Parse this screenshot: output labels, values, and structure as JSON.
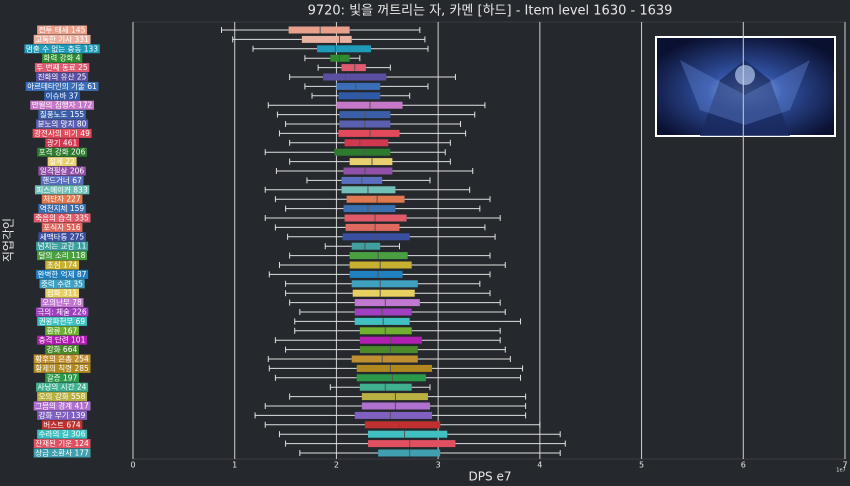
{
  "chart_data": {
    "type": "boxplot",
    "title": "9720: 빛을 꺼트리는 자, 카멘 [하드] - Item level 1630 - 1639",
    "x_label": "DPS e7",
    "y_label": "직업각인",
    "offset_label": "1e7",
    "xlim": [
      0,
      7
    ],
    "xticks": [
      0,
      1,
      2,
      3,
      4,
      5,
      6,
      7
    ],
    "grid": true,
    "boxes": [
      {
        "label": "전투 태세 145",
        "color": "#e8a08a",
        "low": 0.87,
        "q1": 1.53,
        "median": 1.84,
        "q3": 2.13,
        "high": 2.82
      },
      {
        "label": "고독한 기사 331",
        "color": "#eab0a0",
        "low": 0.98,
        "q1": 1.66,
        "median": 2.03,
        "q3": 2.15,
        "high": 2.87
      },
      {
        "label": "멈출 수 없는 충동 133",
        "color": "#1f9ab8",
        "low": 1.18,
        "q1": 1.81,
        "median": 1.99,
        "q3": 2.34,
        "high": 2.9
      },
      {
        "label": "화력 강화 4",
        "color": "#2e8b2e",
        "low": 1.69,
        "q1": 1.94,
        "median": 2.03,
        "q3": 2.13,
        "high": 2.23
      },
      {
        "label": "두 번째 동료 25",
        "color": "#e05a70",
        "low": 1.82,
        "q1": 2.05,
        "median": 2.18,
        "q3": 2.29,
        "high": 2.53
      },
      {
        "label": "진화의 유산 25",
        "color": "#5a4fa0",
        "low": 1.54,
        "q1": 1.87,
        "median": 2.09,
        "q3": 2.49,
        "high": 3.17
      },
      {
        "label": "아르데타인의 기술 61",
        "color": "#3a6fb8",
        "low": 1.69,
        "q1": 2.0,
        "median": 2.19,
        "q3": 2.43,
        "high": 2.9
      },
      {
        "label": "이슈바 37",
        "color": "#2f5aa8",
        "low": 1.76,
        "q1": 2.02,
        "median": 2.23,
        "q3": 2.43,
        "high": 2.72
      },
      {
        "label": "만월의 집행자 172",
        "color": "#c878c8",
        "low": 1.33,
        "q1": 2.0,
        "median": 2.33,
        "q3": 2.65,
        "high": 3.46
      },
      {
        "label": "질풍노도 155",
        "color": "#3a5fa8",
        "low": 1.42,
        "q1": 2.03,
        "median": 2.28,
        "q3": 2.53,
        "high": 3.36
      },
      {
        "label": "분노의 망치 80",
        "color": "#5a5fb0",
        "low": 1.5,
        "q1": 2.03,
        "median": 2.28,
        "q3": 2.53,
        "high": 3.22
      },
      {
        "label": "광전사의 비기 49",
        "color": "#e04a5a",
        "low": 1.44,
        "q1": 2.02,
        "median": 2.33,
        "q3": 2.62,
        "high": 3.27
      },
      {
        "label": "광기 461",
        "color": "#d03850",
        "low": 1.54,
        "q1": 2.08,
        "median": 2.23,
        "q3": 2.51,
        "high": 3.12
      },
      {
        "label": "포격 강화 206",
        "color": "#2e7a2e",
        "low": 1.3,
        "q1": 1.98,
        "median": 2.28,
        "q3": 2.53,
        "high": 3.07
      },
      {
        "label": "절제 22",
        "color": "#e8d070",
        "low": 1.54,
        "q1": 2.13,
        "median": 2.35,
        "q3": 2.55,
        "high": 3.12
      },
      {
        "label": "일격필살 206",
        "color": "#9050a8",
        "low": 1.41,
        "q1": 2.07,
        "median": 2.28,
        "q3": 2.55,
        "high": 3.34
      },
      {
        "label": "핸드거너 67",
        "color": "#5a6fc0",
        "low": 1.71,
        "q1": 2.05,
        "median": 2.25,
        "q3": 2.45,
        "high": 2.92
      },
      {
        "label": "피스메이커 833",
        "color": "#70c0b8",
        "low": 1.3,
        "q1": 2.05,
        "median": 2.31,
        "q3": 2.58,
        "high": 3.31
      },
      {
        "label": "처단자 227",
        "color": "#e07850",
        "low": 1.4,
        "q1": 2.1,
        "median": 2.4,
        "q3": 2.67,
        "high": 3.51
      },
      {
        "label": "역천지체 159",
        "color": "#3a6fb0",
        "low": 1.5,
        "q1": 2.07,
        "median": 2.31,
        "q3": 2.58,
        "high": 3.41
      },
      {
        "label": "죽음의 습격 335",
        "color": "#e05a6a",
        "low": 1.3,
        "q1": 2.08,
        "median": 2.38,
        "q3": 2.69,
        "high": 3.61
      },
      {
        "label": "포식자 516",
        "color": "#e06a60",
        "low": 1.4,
        "q1": 2.09,
        "median": 2.38,
        "q3": 2.62,
        "high": 3.46
      },
      {
        "label": "세맥타통 275",
        "color": "#3a4fa0",
        "low": 1.52,
        "q1": 2.06,
        "median": 2.38,
        "q3": 2.72,
        "high": 3.56
      },
      {
        "label": "넘치는 교감 11",
        "color": "#40a0a0",
        "low": 1.89,
        "q1": 2.15,
        "median": 2.28,
        "q3": 2.43,
        "high": 2.62
      },
      {
        "label": "달의 소리 118",
        "color": "#4aa040",
        "low": 1.54,
        "q1": 2.13,
        "median": 2.41,
        "q3": 2.7,
        "high": 3.51
      },
      {
        "label": "초심 174",
        "color": "#c8b030",
        "low": 1.44,
        "q1": 2.13,
        "median": 2.43,
        "q3": 2.74,
        "high": 3.66
      },
      {
        "label": "완벽한 억제 87",
        "color": "#2080c0",
        "low": 1.34,
        "q1": 2.13,
        "median": 2.41,
        "q3": 2.65,
        "high": 3.51
      },
      {
        "label": "중력 수련 35",
        "color": "#40a0c0",
        "low": 1.5,
        "q1": 2.15,
        "median": 2.43,
        "q3": 2.8,
        "high": 3.41
      },
      {
        "label": "점화 311",
        "color": "#e8d060",
        "low": 1.5,
        "q1": 2.16,
        "median": 2.43,
        "q3": 2.77,
        "high": 3.51
      },
      {
        "label": "오의난무 78",
        "color": "#c078d0",
        "low": 1.54,
        "q1": 2.18,
        "median": 2.48,
        "q3": 2.82,
        "high": 3.61
      },
      {
        "label": "극의: 체술 226",
        "color": "#a040c0",
        "low": 1.64,
        "q1": 2.18,
        "median": 2.45,
        "q3": 2.74,
        "high": 3.66
      },
      {
        "label": "권왕파천무 69",
        "color": "#40c0c0",
        "low": 1.59,
        "q1": 2.18,
        "median": 2.46,
        "q3": 2.72,
        "high": 3.81
      },
      {
        "label": "환류 167",
        "color": "#70b030",
        "low": 1.59,
        "q1": 2.23,
        "median": 2.48,
        "q3": 2.74,
        "high": 3.61
      },
      {
        "label": "충격 단련 101",
        "color": "#b020b0",
        "low": 1.4,
        "q1": 2.23,
        "median": 2.53,
        "q3": 2.84,
        "high": 3.61
      },
      {
        "label": "강화 664",
        "color": "#4a8a2a",
        "low": 1.5,
        "q1": 2.23,
        "median": 2.53,
        "q3": 2.8,
        "high": 3.66
      },
      {
        "label": "황후의 은총 254",
        "color": "#c09030",
        "low": 1.33,
        "q1": 2.15,
        "median": 2.45,
        "q3": 2.8,
        "high": 3.71
      },
      {
        "label": "황제의 칙령 285",
        "color": "#b08820",
        "low": 1.34,
        "q1": 2.2,
        "median": 2.53,
        "q3": 2.94,
        "high": 3.83
      },
      {
        "label": "갈증 197",
        "color": "#2a9a4a",
        "low": 1.4,
        "q1": 2.2,
        "median": 2.55,
        "q3": 2.88,
        "high": 3.81
      },
      {
        "label": "사냥의 시간 24",
        "color": "#40b090",
        "low": 1.94,
        "q1": 2.23,
        "median": 2.48,
        "q3": 2.74,
        "high": 2.92
      },
      {
        "label": "오의 강화 558",
        "color": "#b8b040",
        "low": 1.54,
        "q1": 2.25,
        "median": 2.58,
        "q3": 2.9,
        "high": 3.86
      },
      {
        "label": "그믐의 경계 417",
        "color": "#b070d0",
        "low": 1.3,
        "q1": 2.25,
        "median": 2.58,
        "q3": 2.92,
        "high": 3.86
      },
      {
        "label": "강화 무기 139",
        "color": "#8060c0",
        "low": 1.2,
        "q1": 2.18,
        "median": 2.53,
        "q3": 2.94,
        "high": 3.86
      },
      {
        "label": "버스트 674",
        "color": "#c03030",
        "low": 1.3,
        "q1": 2.28,
        "median": 2.62,
        "q3": 3.02,
        "high": 4.0
      },
      {
        "label": "수라의 길 306",
        "color": "#40c0c0",
        "low": 1.44,
        "q1": 2.31,
        "median": 2.67,
        "q3": 3.09,
        "high": 4.2
      },
      {
        "label": "잔재된 기운 124",
        "color": "#e05060",
        "low": 1.5,
        "q1": 2.31,
        "median": 2.72,
        "q3": 3.17,
        "high": 4.25
      },
      {
        "label": "상급 소환사 177",
        "color": "#40a0b0",
        "low": 1.64,
        "q1": 2.41,
        "median": 2.72,
        "q3": 3.02,
        "high": 4.2
      }
    ]
  }
}
